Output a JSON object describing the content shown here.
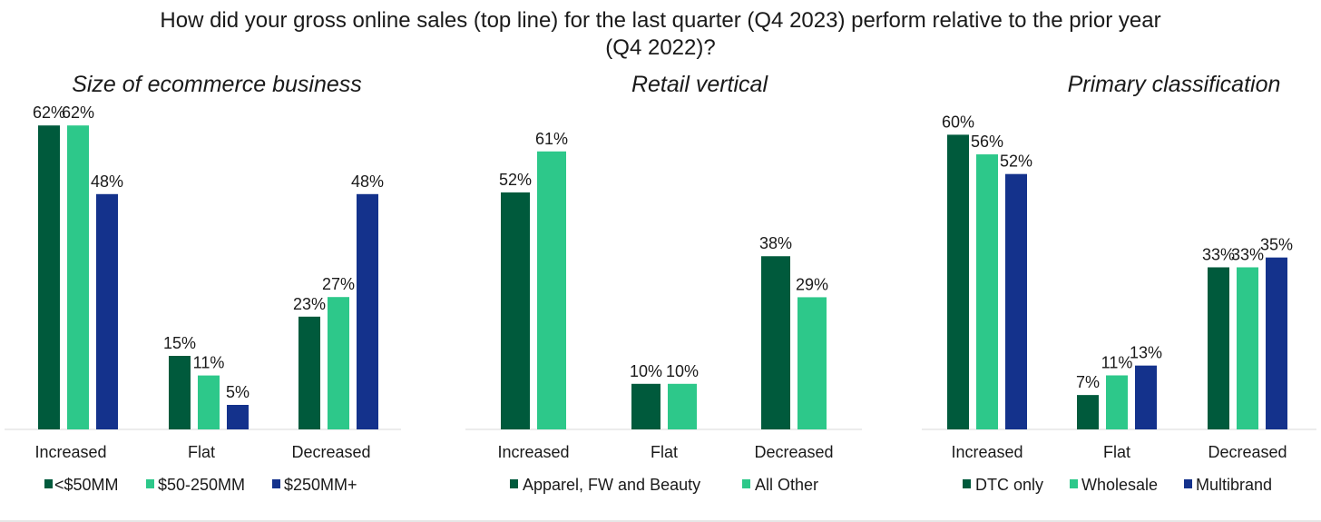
{
  "title": {
    "line1": "How did your gross online sales (top line) for the last quarter (Q4 2023) perform relative to the prior year",
    "line2": "(Q4 2022)?"
  },
  "colors": {
    "dark_green": "#005a3c",
    "light_green": "#2dc88a",
    "navy": "#14328c",
    "axis": "#d9d9d9",
    "text": "#1a1a1a"
  },
  "chart_data": [
    {
      "type": "bar",
      "title": "Size of ecommerce business",
      "categories": [
        "Increased",
        "Flat",
        "Decreased"
      ],
      "series": [
        {
          "name": "<$50MM",
          "values": [
            62,
            15,
            23
          ],
          "labels": [
            "62%",
            "15%",
            "23%"
          ]
        },
        {
          "name": "$50-250MM",
          "values": [
            62,
            11,
            27
          ],
          "labels": [
            "62%",
            "11%",
            "27%"
          ]
        },
        {
          "name": "$250MM+",
          "values": [
            48,
            5,
            48
          ],
          "labels": [
            "48%",
            "5%",
            "48%"
          ]
        }
      ],
      "ylim": [
        0,
        62
      ],
      "grid": false,
      "legend": "bottom"
    },
    {
      "type": "bar",
      "title": "Retail vertical",
      "categories": [
        "Increased",
        "Flat",
        "Decreased"
      ],
      "series": [
        {
          "name": "Apparel, FW and Beauty",
          "values": [
            52,
            10,
            38
          ],
          "labels": [
            "52%",
            "10%",
            "38%"
          ]
        },
        {
          "name": "All Other",
          "values": [
            61,
            10,
            29
          ],
          "labels": [
            "61%",
            "10%",
            "29%"
          ]
        }
      ],
      "ylim": [
        0,
        61
      ],
      "grid": false,
      "legend": "bottom"
    },
    {
      "type": "bar",
      "title": "Primary classification",
      "categories": [
        "Increased",
        "Flat",
        "Decreased"
      ],
      "series": [
        {
          "name": "DTC only",
          "values": [
            60,
            7,
            33
          ],
          "labels": [
            "60%",
            "7%",
            "33%"
          ]
        },
        {
          "name": "Wholesale",
          "values": [
            56,
            11,
            33
          ],
          "labels": [
            "56%",
            "11%",
            "33%"
          ]
        },
        {
          "name": "Multibrand",
          "values": [
            52,
            13,
            35
          ],
          "labels": [
            "52%",
            "13%",
            "35%"
          ]
        }
      ],
      "ylim": [
        0,
        60
      ],
      "grid": false,
      "legend": "bottom"
    }
  ]
}
